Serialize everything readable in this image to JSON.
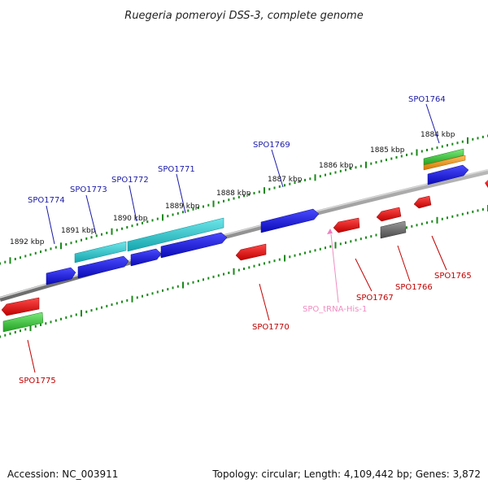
{
  "title": "Ruegeria pomeroyi DSS-3, complete genome",
  "accession_text": "Accession: NC_003911",
  "stats_text": "Topology: circular; Length: 4,109,442 bp; Genes: 3,872",
  "scale": {
    "ticks": [
      "1892 kbp",
      "1891 kbp",
      "1890 kbp",
      "1889 kbp",
      "1888 kbp",
      "1887 kbp",
      "1886 kbp",
      "1885 kbp",
      "1884 kbp"
    ]
  },
  "genes": [
    {
      "id": "SPO1774",
      "strand": "+",
      "color": "#1a1aa6"
    },
    {
      "id": "SPO1773",
      "strand": "+",
      "color": "#1a1aa6"
    },
    {
      "id": "SPO1772",
      "strand": "+",
      "color": "#1a1aa6"
    },
    {
      "id": "SPO1771",
      "strand": "+",
      "color": "#1a1aa6"
    },
    {
      "id": "SPO1769",
      "strand": "+",
      "color": "#1a1aa6"
    },
    {
      "id": "SPO1764",
      "strand": "+",
      "color": "#1a1aa6"
    },
    {
      "id": "SPO1775",
      "strand": "-",
      "color": "#c00000"
    },
    {
      "id": "SPO1770",
      "strand": "-",
      "color": "#c00000"
    },
    {
      "id": "SPO_tRNA-His-1",
      "strand": "-",
      "color": "#f08cc0"
    },
    {
      "id": "SPO1767",
      "strand": "-",
      "color": "#c00000"
    },
    {
      "id": "SPO1766",
      "strand": "-",
      "color": "#c00000"
    },
    {
      "id": "SPO1765",
      "strand": "-",
      "color": "#c00000"
    }
  ],
  "colors": {
    "cds_plus": "#1515dd",
    "cds_minus": "#e01010",
    "feature_cyan": "#22c4cc",
    "feature_green": "#44cc44",
    "feature_orange": "#f09a20",
    "feature_grey": "#666666",
    "trna": "#f080c0",
    "backbone": "#8a8a8a",
    "tick": "#1a8a1a"
  }
}
